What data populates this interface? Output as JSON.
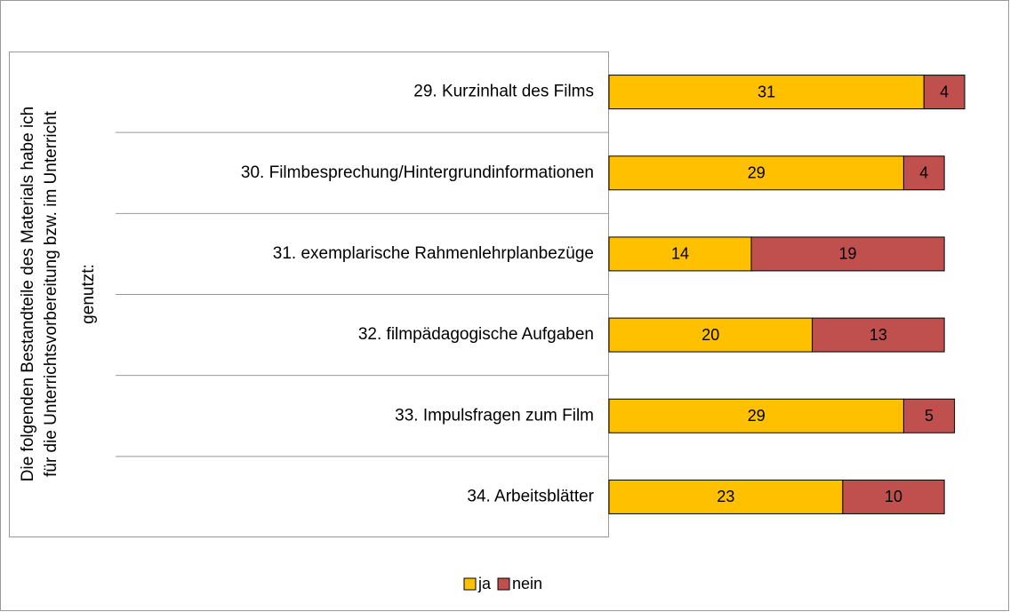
{
  "chart_data": {
    "type": "stacked-bar-horizontal",
    "y_axis_label": [
      "Die folgenden Bestandteile des Materials habe ich",
      "für die Unterrichtsvorbereitung bzw. im Unterricht",
      "genutzt:"
    ],
    "categories": [
      "29. Kurzinhalt des Films",
      "30. Filmbesprechung/Hintergrundinformationen",
      "31. exemplarische Rahmenlehrplanbezüge",
      "32. filmpädagogische Aufgaben",
      "33. Impulsfragen zum Film",
      "34. Arbeitsblätter"
    ],
    "series": [
      {
        "name": "ja",
        "color": "#ffc000",
        "values": [
          31,
          29,
          14,
          20,
          29,
          23
        ]
      },
      {
        "name": "nein",
        "color": "#c0504d",
        "values": [
          4,
          4,
          19,
          13,
          5,
          10
        ]
      }
    ],
    "legend": "bottom"
  }
}
